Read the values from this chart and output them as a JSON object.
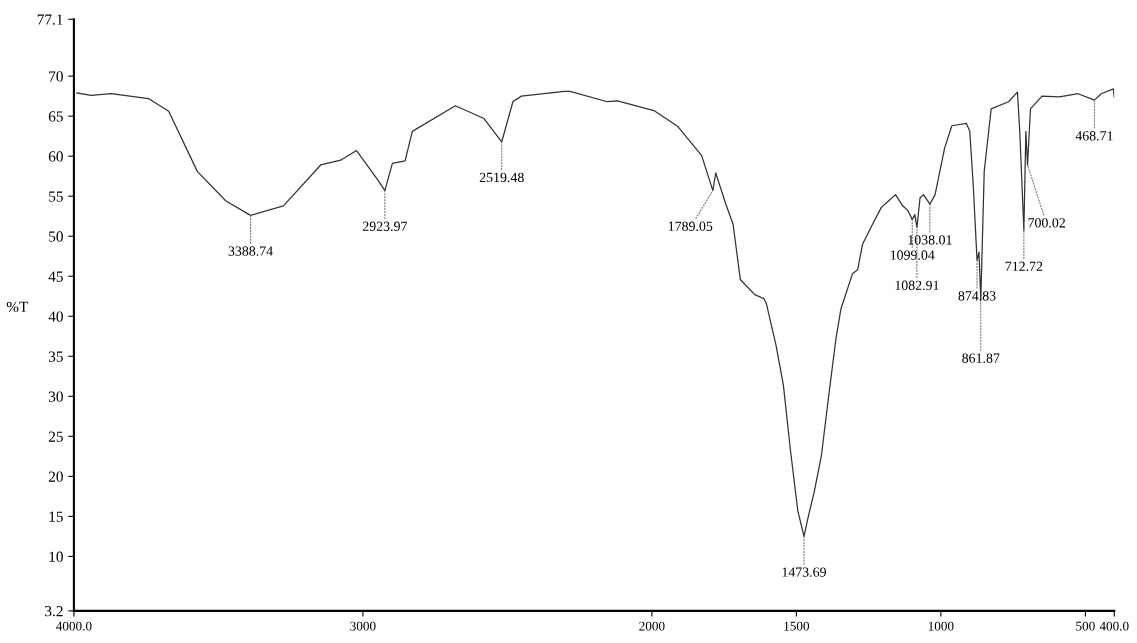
{
  "chart_data": {
    "type": "line",
    "ylabel": "%T",
    "xlim": [
      4000,
      400
    ],
    "ylim": [
      3.2,
      77.1
    ],
    "xticks": [
      {
        "value": 4000,
        "label": "4000.0"
      },
      3000,
      2000,
      1500,
      1000,
      500,
      {
        "value": 400,
        "label": "400.0"
      }
    ],
    "yticks": [
      3.2,
      10,
      15,
      20,
      25,
      30,
      35,
      40,
      45,
      50,
      55,
      60,
      65,
      70,
      77.1
    ],
    "grid": false,
    "marker": "none",
    "line_style": "solid",
    "series": [
      {
        "color": "#333333",
        "x": [
          3990,
          3940,
          3871,
          3742,
          3672,
          3573,
          3474,
          3388.74,
          3275,
          3146,
          3077,
          3022,
          2978,
          2948,
          2923.97,
          2898,
          2854,
          2829,
          2680,
          2581,
          2519.48,
          2481,
          2452,
          2303,
          2283,
          2154,
          2119,
          1993,
          1910,
          1828,
          1789.05,
          1779,
          1744,
          1719,
          1694,
          1644,
          1612,
          1604,
          1570,
          1545,
          1520,
          1495,
          1473.69,
          1458,
          1438,
          1413,
          1388,
          1363,
          1346,
          1306,
          1288,
          1271,
          1239,
          1206,
          1181,
          1157,
          1132,
          1114,
          1099.04,
          1090,
          1082.91,
          1072,
          1060,
          1038.01,
          1020,
          987,
          962,
          912,
          900,
          888,
          874.83,
          868,
          861.87,
          850,
          826,
          766,
          735,
          727,
          712.72,
          706,
          700.02,
          690,
          650,
          590,
          525,
          468.71,
          445,
          403,
          400
        ],
        "values": [
          67.9,
          67.6,
          67.8,
          67.2,
          65.6,
          58.1,
          54.4,
          52.6,
          53.8,
          58.9,
          59.5,
          60.7,
          58.5,
          57.0,
          55.7,
          59.1,
          59.4,
          63.1,
          66.3,
          64.7,
          61.8,
          66.8,
          67.5,
          68.1,
          68.1,
          66.8,
          66.9,
          65.7,
          63.7,
          60.1,
          55.7,
          57.9,
          54.0,
          51.5,
          44.6,
          42.7,
          42.2,
          41.6,
          36.3,
          31.4,
          23.1,
          15.7,
          12.5,
          15.1,
          18.1,
          22.7,
          30.1,
          37.2,
          40.9,
          45.3,
          45.8,
          49.0,
          51.3,
          53.6,
          54.4,
          55.2,
          53.8,
          53.2,
          52.1,
          52.7,
          51.1,
          54.8,
          55.2,
          54.0,
          55.2,
          61.0,
          63.8,
          64.1,
          63.1,
          56.4,
          47.0,
          48.0,
          42.0,
          58.1,
          65.9,
          66.8,
          68.0,
          63.1,
          50.7,
          63.1,
          58.9,
          65.9,
          67.5,
          67.4,
          67.8,
          67.0,
          67.8,
          68.4,
          67.4
        ]
      }
    ],
    "annotations": [
      {
        "text": "3388.74",
        "x": 3388.74,
        "y": 52.6
      },
      {
        "text": "2923.97",
        "x": 2923.97,
        "y": 55.7
      },
      {
        "text": "2519.48",
        "x": 2519.48,
        "y": 61.8
      },
      {
        "text": "1789.05",
        "x": 1789.05,
        "y": 55.7
      },
      {
        "text": "1473.69",
        "x": 1473.69,
        "y": 12.5
      },
      {
        "text": "1099.04",
        "x": 1099.04,
        "y": 52.1
      },
      {
        "text": "1082.91",
        "x": 1082.91,
        "y": 51.1
      },
      {
        "text": "1038.01",
        "x": 1038.01,
        "y": 54.0
      },
      {
        "text": "874.83",
        "x": 874.83,
        "y": 47.0
      },
      {
        "text": "861.87",
        "x": 861.87,
        "y": 42.0
      },
      {
        "text": "712.72",
        "x": 712.72,
        "y": 50.7
      },
      {
        "text": "700.02",
        "x": 700.02,
        "y": 58.9
      },
      {
        "text": "468.71",
        "x": 468.71,
        "y": 67.0
      }
    ]
  }
}
